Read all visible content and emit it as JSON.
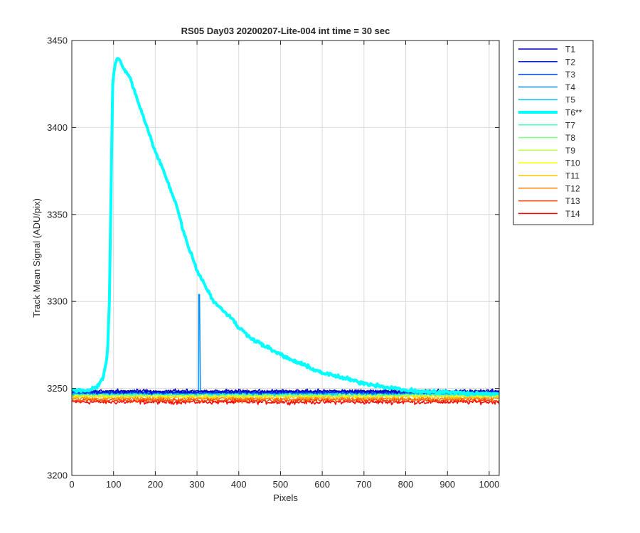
{
  "chart_data": {
    "type": "line",
    "title": "RS05 Day03 20200207-Lite-004 int time = 30 sec",
    "xlabel": "Pixels",
    "ylabel": "Track Mean Signal (ADU/pix)",
    "xlim": [
      0,
      1024
    ],
    "ylim": [
      3200,
      3450
    ],
    "xticks": [
      0,
      100,
      200,
      300,
      400,
      500,
      600,
      700,
      800,
      900,
      1000
    ],
    "yticks": [
      3200,
      3250,
      3300,
      3350,
      3400,
      3450
    ],
    "grid": true,
    "legend_position": "outside-top-right",
    "series": [
      {
        "name": "T1",
        "color": "#0000c0",
        "baseline": 3248.5,
        "noise": 1.0,
        "width": 1.5
      },
      {
        "name": "T2",
        "color": "#0020e0",
        "baseline": 3248.0,
        "noise": 1.0,
        "width": 1.5
      },
      {
        "name": "T3",
        "color": "#0050ff",
        "baseline": 3247.8,
        "noise": 1.0,
        "width": 1.5
      },
      {
        "name": "T4",
        "color": "#0090ff",
        "baseline": 3247.6,
        "noise": 1.0,
        "width": 1.5,
        "spike": {
          "x": 305,
          "y": 3304
        }
      },
      {
        "name": "T5",
        "color": "#00c8ff",
        "baseline": 3247.2,
        "noise": 1.0,
        "width": 1.5
      },
      {
        "name": "T6**",
        "color": "#00ffff",
        "baseline": 3248.0,
        "noise": 1.0,
        "width": 4,
        "points": [
          [
            0,
            3249
          ],
          [
            40,
            3249
          ],
          [
            60,
            3251
          ],
          [
            75,
            3256
          ],
          [
            85,
            3268
          ],
          [
            90,
            3300
          ],
          [
            95,
            3380
          ],
          [
            98,
            3425
          ],
          [
            103,
            3436
          ],
          [
            110,
            3440
          ],
          [
            120,
            3436
          ],
          [
            140,
            3428
          ],
          [
            160,
            3414
          ],
          [
            180,
            3400
          ],
          [
            200,
            3386
          ],
          [
            220,
            3375
          ],
          [
            250,
            3356
          ],
          [
            270,
            3338
          ],
          [
            300,
            3318
          ],
          [
            340,
            3300
          ],
          [
            380,
            3291
          ],
          [
            400,
            3285
          ],
          [
            430,
            3279
          ],
          [
            480,
            3272
          ],
          [
            520,
            3267
          ],
          [
            560,
            3263
          ],
          [
            600,
            3259
          ],
          [
            650,
            3256
          ],
          [
            700,
            3253
          ],
          [
            750,
            3251
          ],
          [
            800,
            3249
          ],
          [
            850,
            3248
          ],
          [
            900,
            3248
          ],
          [
            950,
            3247
          ],
          [
            1000,
            3247
          ],
          [
            1024,
            3247
          ]
        ]
      },
      {
        "name": "T7",
        "color": "#40ffc0",
        "baseline": 3246.8,
        "noise": 1.0,
        "width": 1.5
      },
      {
        "name": "T8",
        "color": "#80ff80",
        "baseline": 3246.5,
        "noise": 1.0,
        "width": 1.5
      },
      {
        "name": "T9",
        "color": "#c0ff40",
        "baseline": 3246.2,
        "noise": 1.0,
        "width": 1.5
      },
      {
        "name": "T10",
        "color": "#ffff00",
        "baseline": 3245.8,
        "noise": 1.0,
        "width": 1.5
      },
      {
        "name": "T11",
        "color": "#ffc000",
        "baseline": 3245.2,
        "noise": 1.0,
        "width": 1.5
      },
      {
        "name": "T12",
        "color": "#ff8000",
        "baseline": 3244.2,
        "noise": 1.2,
        "width": 1.5
      },
      {
        "name": "T13",
        "color": "#ff4000",
        "baseline": 3243.2,
        "noise": 1.2,
        "width": 1.5
      },
      {
        "name": "T14",
        "color": "#ff0000",
        "baseline": 3242.2,
        "noise": 1.2,
        "width": 1.5
      }
    ]
  }
}
